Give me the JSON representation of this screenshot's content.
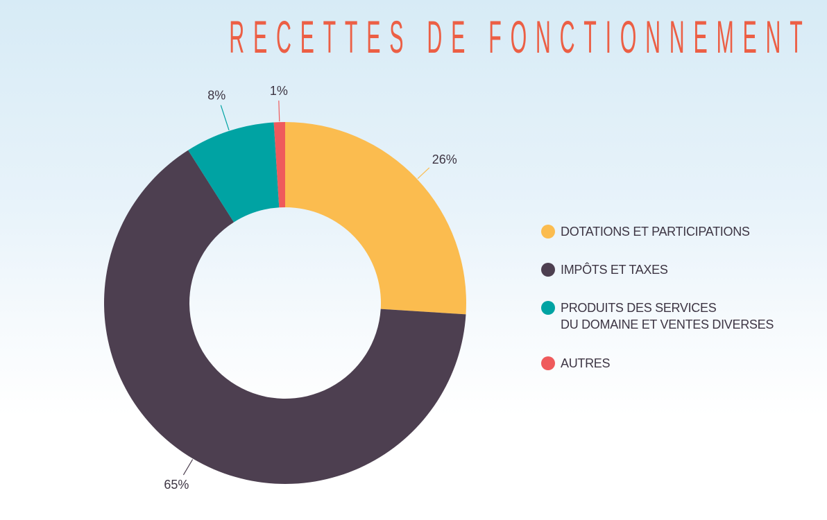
{
  "header": {
    "title": "RECETTES DE FONCTIONNEMENT"
  },
  "chart_data": {
    "type": "pie",
    "variant": "donut",
    "title": "RECETTES DE FONCTIONNEMENT",
    "categories": [
      "DOTATIONS ET PARTICIPATIONS",
      "IMPÔTS ET TAXES",
      "PRODUITS DES SERVICES\nDU DOMAINE ET VENTES DIVERSES",
      "AUTRES"
    ],
    "values": [
      26,
      65,
      8,
      1
    ],
    "labels": [
      "26%",
      "65%",
      "8%",
      "1%"
    ],
    "colors": [
      "#fbbc4f",
      "#4d3f50",
      "#00a3a3",
      "#ef5a5c"
    ],
    "legend_position": "right"
  }
}
